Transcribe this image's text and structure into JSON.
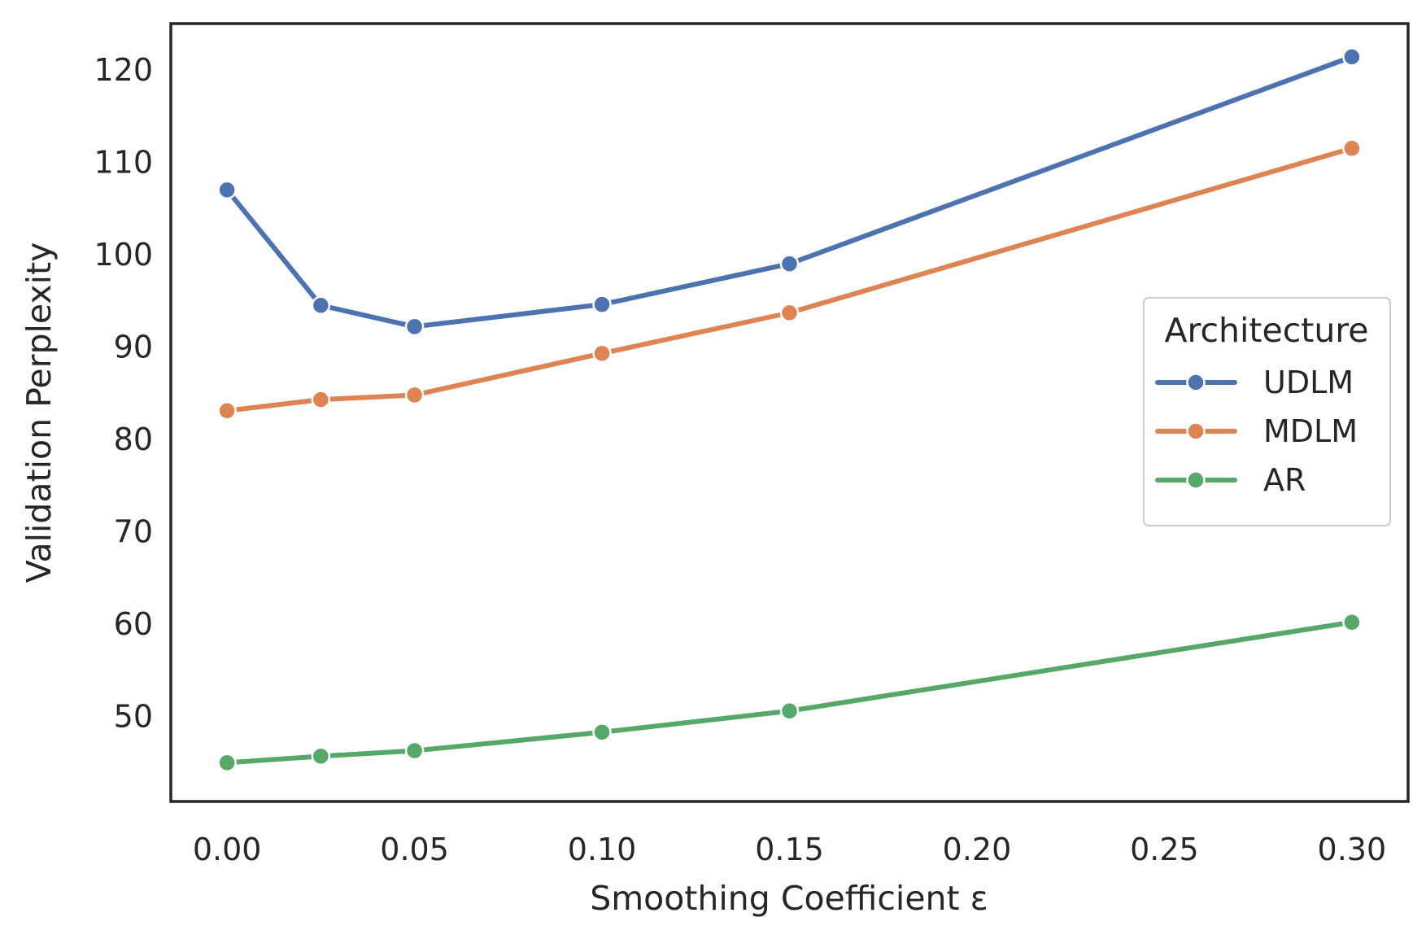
{
  "chart_data": {
    "type": "line",
    "xlabel": "Smoothing Coefficient ε",
    "ylabel": "Validation Perplexity",
    "xlim": [
      -0.015,
      0.315
    ],
    "ylim": [
      40.8,
      125.0
    ],
    "x_ticks": [
      0.0,
      0.05,
      0.1,
      0.15,
      0.2,
      0.25,
      0.3
    ],
    "x_tick_labels": [
      "0.00",
      "0.05",
      "0.10",
      "0.15",
      "0.20",
      "0.25",
      "0.30"
    ],
    "y_ticks": [
      50,
      60,
      70,
      80,
      90,
      100,
      110,
      120
    ],
    "y_tick_labels": [
      "50",
      "60",
      "70",
      "80",
      "90",
      "100",
      "110",
      "120"
    ],
    "grid": false,
    "legend": {
      "title": "Architecture",
      "placement": "center-right"
    },
    "x": [
      0.0,
      0.025,
      0.05,
      0.1,
      0.15,
      0.3
    ],
    "series": [
      {
        "name": "UDLM",
        "color": "#4c72b0",
        "values": [
          107.0,
          94.5,
          92.2,
          94.6,
          99.0,
          121.4
        ]
      },
      {
        "name": "MDLM",
        "color": "#dd8452",
        "values": [
          83.1,
          84.3,
          84.8,
          89.3,
          93.7,
          111.5
        ]
      },
      {
        "name": "AR",
        "color": "#55a868",
        "values": [
          45.0,
          45.7,
          46.3,
          48.3,
          50.6,
          60.2
        ]
      }
    ]
  }
}
